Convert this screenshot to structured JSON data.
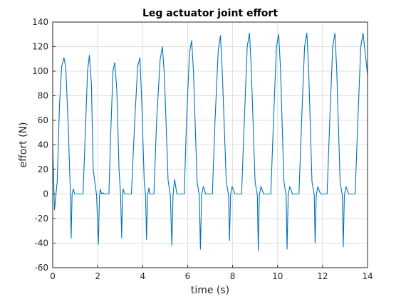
{
  "colors": {
    "line": "#0072BD",
    "grid": "#dfdfdf",
    "axis": "#262626",
    "background": "#ffffff"
  },
  "chart_data": {
    "type": "line",
    "title": "Leg actuator joint effort",
    "xlabel": "time (s)",
    "ylabel": "effort (N)",
    "xlim": [
      0,
      14
    ],
    "ylim": [
      -60,
      140
    ],
    "xticks": [
      0,
      2,
      4,
      6,
      8,
      10,
      12,
      14
    ],
    "yticks": [
      -60,
      -40,
      -20,
      0,
      20,
      40,
      60,
      80,
      100,
      120,
      140
    ],
    "grid": true,
    "series": [
      {
        "x": [
          0,
          0.08,
          0.2,
          0.3,
          0.4,
          0.5,
          0.58,
          0.68,
          0.78,
          0.82,
          0.86,
          0.92,
          0.98,
          1.1,
          1.35,
          1.35,
          1.45,
          1.55,
          1.63,
          1.72,
          1.8,
          1.95,
          2.03,
          2.08,
          2.12,
          2.17,
          2.24,
          2.3,
          2.5,
          2.5,
          2.58,
          2.68,
          2.76,
          2.85,
          2.95,
          3.02,
          3.07,
          3.1,
          3.14,
          3.2,
          3.25,
          3.45,
          3.5,
          3.65,
          3.78,
          3.88,
          3.96,
          4.07,
          4.13,
          4.17,
          4.22,
          4.28,
          4.32,
          4.5,
          4.5,
          4.62,
          4.78,
          4.88,
          4.97,
          5.13,
          5.23,
          5.3,
          5.35,
          5.42,
          5.52,
          5.85,
          5.85,
          5.95,
          6.08,
          6.18,
          6.26,
          6.42,
          6.52,
          6.57,
          6.62,
          6.7,
          6.8,
          7.1,
          7.1,
          7.22,
          7.36,
          7.46,
          7.54,
          7.72,
          7.82,
          7.86,
          7.91,
          7.98,
          8.1,
          8.4,
          8.4,
          8.52,
          8.65,
          8.75,
          8.83,
          9.0,
          9.1,
          9.14,
          9.19,
          9.26,
          9.38,
          9.7,
          9.7,
          9.82,
          9.95,
          10.05,
          10.13,
          10.28,
          10.38,
          10.42,
          10.47,
          10.54,
          10.66,
          10.95,
          10.95,
          11.07,
          11.2,
          11.3,
          11.38,
          11.53,
          11.63,
          11.67,
          11.72,
          11.79,
          11.91,
          12.2,
          12.2,
          12.32,
          12.45,
          12.55,
          12.63,
          12.78,
          12.88,
          12.92,
          12.97,
          13.04,
          13.16,
          13.45,
          13.45,
          13.57,
          13.7,
          13.8,
          13.88,
          14.0
        ],
        "y": [
          40,
          -13,
          10,
          72,
          104,
          111,
          103,
          60,
          5,
          -36,
          0,
          4,
          0,
          0,
          0,
          0,
          50,
          100,
          113,
          90,
          20,
          -1,
          -41,
          -1,
          4,
          0,
          1,
          0,
          0,
          0,
          50,
          100,
          107,
          85,
          20,
          -1,
          -36,
          -1,
          4,
          0,
          0,
          0,
          0,
          60,
          104,
          111,
          75,
          10,
          -1,
          -37,
          -1,
          5,
          0,
          0,
          0,
          60,
          110,
          120,
          95,
          11,
          -1,
          -42,
          -1,
          12,
          0,
          0,
          0,
          60,
          115,
          125,
          100,
          10,
          -1,
          -45,
          -1,
          6,
          0,
          0,
          0,
          60,
          117,
          129,
          100,
          10,
          -1,
          -38,
          -1,
          6,
          0,
          0,
          0,
          60,
          120,
          131,
          102,
          10,
          -1,
          -46,
          -1,
          6,
          0,
          0,
          0,
          60,
          120,
          130,
          102,
          10,
          -1,
          -45,
          -1,
          6,
          0,
          0,
          0,
          60,
          120,
          131,
          102,
          10,
          -1,
          -40,
          -1,
          6,
          0,
          0,
          0,
          60,
          120,
          131,
          102,
          10,
          -1,
          -43,
          -1,
          6,
          0,
          0,
          0,
          60,
          120,
          131,
          118,
          97
        ]
      }
    ]
  }
}
